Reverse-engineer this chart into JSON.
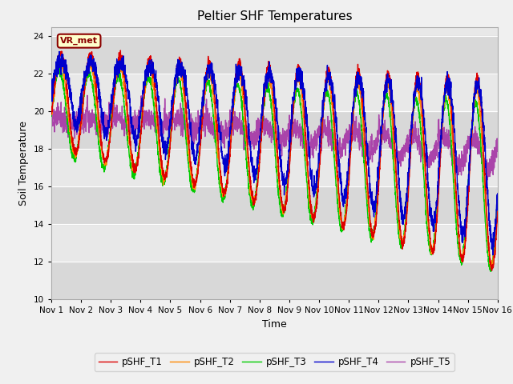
{
  "title": "Peltier SHF Temperatures",
  "xlabel": "Time",
  "ylabel": "Soil Temperature",
  "annotation": "VR_met",
  "xlim": [
    0,
    15
  ],
  "ylim": [
    10,
    24.5
  ],
  "yticks": [
    10,
    12,
    14,
    16,
    18,
    20,
    22,
    24
  ],
  "xtick_labels": [
    "Nov 1",
    "Nov 2",
    "Nov 3",
    "Nov 4",
    "Nov 5",
    "Nov 6",
    "Nov 7",
    "Nov 8",
    "Nov 9",
    "Nov 10",
    "Nov 11",
    "Nov 12",
    "Nov 13",
    "Nov 14",
    "Nov 15",
    "Nov 16"
  ],
  "xtick_positions": [
    0,
    1,
    2,
    3,
    4,
    5,
    6,
    7,
    8,
    9,
    10,
    11,
    12,
    13,
    14,
    15
  ],
  "series_colors": [
    "#dd0000",
    "#ff8800",
    "#00cc00",
    "#0000cc",
    "#aa44aa"
  ],
  "series_labels": [
    "pSHF_T1",
    "pSHF_T2",
    "pSHF_T3",
    "pSHF_T4",
    "pSHF_T5"
  ],
  "lw": 1.0,
  "bg_color": "#f0f0f0",
  "plot_bg_light": "#e8e8e8",
  "plot_bg_dark": "#d8d8d8",
  "grid_color": "#ffffff"
}
